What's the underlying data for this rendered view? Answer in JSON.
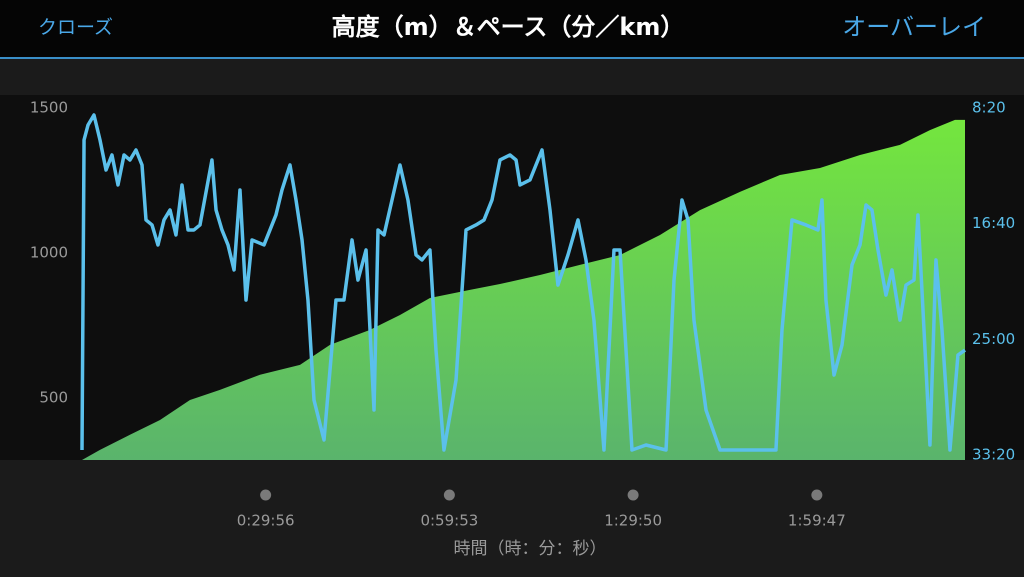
{
  "nav": {
    "left": "クローズ",
    "right": "オーバーレイ"
  },
  "chart_data": {
    "type": "combo",
    "title": "高度（m）＆ペース（分／km）",
    "x_label": "時間（時：分：秒）",
    "xlim": [
      0,
      8636
    ],
    "xticks": [
      {
        "value": 1796,
        "label": "0:29:56"
      },
      {
        "value": 3593,
        "label": "0:59:53"
      },
      {
        "value": 5390,
        "label": "1:29:50"
      },
      {
        "value": 7187,
        "label": "1:59:47"
      }
    ],
    "ylim": [
      286,
      1545
    ],
    "yticks": [
      500,
      1000,
      1500
    ],
    "y2lim": [
      33.69,
      7.4
    ],
    "y2ticks": [
      {
        "value": 8.333,
        "label": "8:20"
      },
      {
        "value": 16.667,
        "label": "16:40"
      },
      {
        "value": 25,
        "label": "25:00"
      },
      {
        "value": 33.333,
        "label": "33:20"
      }
    ],
    "series": [
      {
        "type": "area",
        "color": "#6fdc45",
        "x": [
          0,
          176,
          469,
          763,
          1056,
          1349,
          1741,
          2132,
          2425,
          2817,
          3110,
          3403,
          3794,
          4088,
          4479,
          4870,
          5262,
          5653,
          6044,
          6435,
          6826,
          7218,
          7609,
          8000,
          8293,
          8538,
          8636
        ],
        "values": [
          286,
          321,
          373,
          424,
          493,
          528,
          580,
          614,
          683,
          735,
          786,
          845,
          873,
          893,
          924,
          959,
          993,
          1062,
          1148,
          1211,
          1269,
          1293,
          1338,
          1373,
          1424,
          1459,
          1459
        ]
      },
      {
        "type": "line",
        "color": "#5bc0eb",
        "axis": "y2",
        "x": [
          0,
          20,
          59,
          117,
          176,
          235,
          293,
          352,
          411,
          469,
          528,
          587,
          626,
          685,
          743,
          802,
          861,
          919,
          978,
          1037,
          1095,
          1154,
          1271,
          1311,
          1369,
          1428,
          1487,
          1545,
          1604,
          1663,
          1780,
          1897,
          1956,
          2034,
          2093,
          2152,
          2210,
          2269,
          2367,
          2484,
          2562,
          2641,
          2699,
          2778,
          2856,
          2895,
          2954,
          3032,
          3110,
          3188,
          3267,
          3325,
          3403,
          3462,
          3540,
          3658,
          3756,
          3853,
          3932,
          4010,
          4088,
          4186,
          4245,
          4284,
          4381,
          4499,
          4577,
          4655,
          4753,
          4851,
          4929,
          5007,
          5105,
          5203,
          5262,
          5379,
          5516,
          5712,
          5790,
          5868,
          5927,
          5985,
          6103,
          6240,
          6787,
          6846,
          6944,
          7081,
          7198,
          7237,
          7276,
          7355,
          7433,
          7531,
          7609,
          7668,
          7726,
          7785,
          7863,
          7922,
          8000,
          8059,
          8137,
          8176,
          8215,
          8293,
          8352,
          8411,
          8489,
          8567,
          8636
        ],
        "values": [
          32.97,
          10.64,
          9.56,
          8.84,
          10.64,
          12.8,
          11.72,
          13.88,
          11.72,
          12.08,
          11.36,
          12.44,
          16.4,
          16.76,
          18.2,
          16.4,
          15.68,
          17.48,
          13.88,
          17.12,
          17.12,
          16.76,
          12.08,
          15.68,
          17.12,
          18.2,
          20.0,
          14.24,
          22.17,
          17.84,
          18.2,
          16.04,
          14.24,
          12.44,
          14.96,
          17.84,
          22.17,
          29.37,
          32.25,
          22.17,
          22.17,
          17.84,
          20.73,
          18.56,
          30.09,
          17.12,
          17.48,
          14.96,
          12.44,
          14.96,
          18.92,
          19.28,
          18.56,
          25.77,
          32.97,
          27.93,
          17.12,
          16.76,
          16.4,
          14.96,
          12.08,
          11.72,
          12.08,
          13.88,
          13.52,
          11.36,
          15.68,
          21.09,
          18.92,
          16.4,
          19.28,
          23.61,
          32.97,
          18.56,
          18.56,
          32.97,
          32.61,
          32.97,
          20.73,
          14.96,
          16.4,
          23.61,
          30.09,
          32.97,
          32.97,
          24.33,
          16.4,
          16.76,
          17.12,
          14.96,
          22.17,
          27.57,
          25.41,
          19.64,
          18.2,
          15.32,
          15.68,
          18.56,
          21.81,
          20.0,
          23.61,
          21.09,
          20.73,
          16.04,
          21.45,
          32.61,
          19.28,
          24.33,
          32.97,
          26.13,
          25.77
        ]
      }
    ]
  }
}
